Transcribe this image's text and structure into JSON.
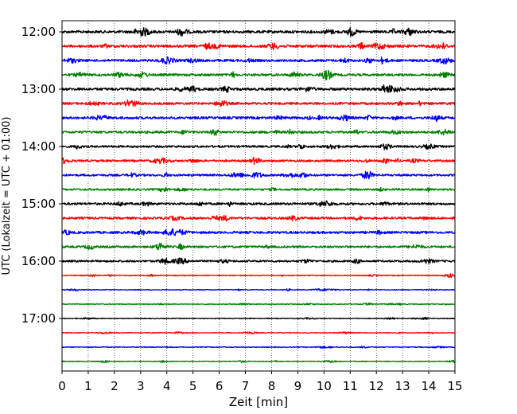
{
  "chart_data": {
    "type": "line",
    "title": "",
    "xlabel": "Zeit  [min]",
    "ylabel": "UTC (Lokalzeit = UTC + 01:00)",
    "xlim": [
      0,
      15
    ],
    "x_ticks": [
      "0",
      "1",
      "2",
      "3",
      "4",
      "5",
      "6",
      "7",
      "8",
      "9",
      "10",
      "11",
      "12",
      "13",
      "14",
      "15"
    ],
    "y_ticks": [
      "12:00",
      "13:00",
      "14:00",
      "15:00",
      "16:00",
      "17:00"
    ],
    "grid": "vertical dotted",
    "line_colors": [
      "#000000",
      "#ff0000",
      "#0000ff",
      "#008000"
    ],
    "trace_start_times": [
      "12:00",
      "12:15",
      "12:30",
      "12:45",
      "13:00",
      "13:15",
      "13:30",
      "13:45",
      "14:00",
      "14:15",
      "14:30",
      "14:45",
      "15:00",
      "15:15",
      "15:30",
      "15:45",
      "16:00",
      "16:15",
      "16:30",
      "16:45",
      "17:00",
      "17:15",
      "17:30",
      "17:45"
    ],
    "trace_amplitude": [
      1.0,
      1.0,
      0.9,
      0.9,
      1.0,
      0.9,
      0.95,
      0.9,
      0.8,
      0.8,
      0.8,
      0.75,
      0.85,
      0.85,
      0.9,
      0.8,
      0.75,
      0.35,
      0.3,
      0.3,
      0.3,
      0.3,
      0.3,
      0.3
    ]
  }
}
